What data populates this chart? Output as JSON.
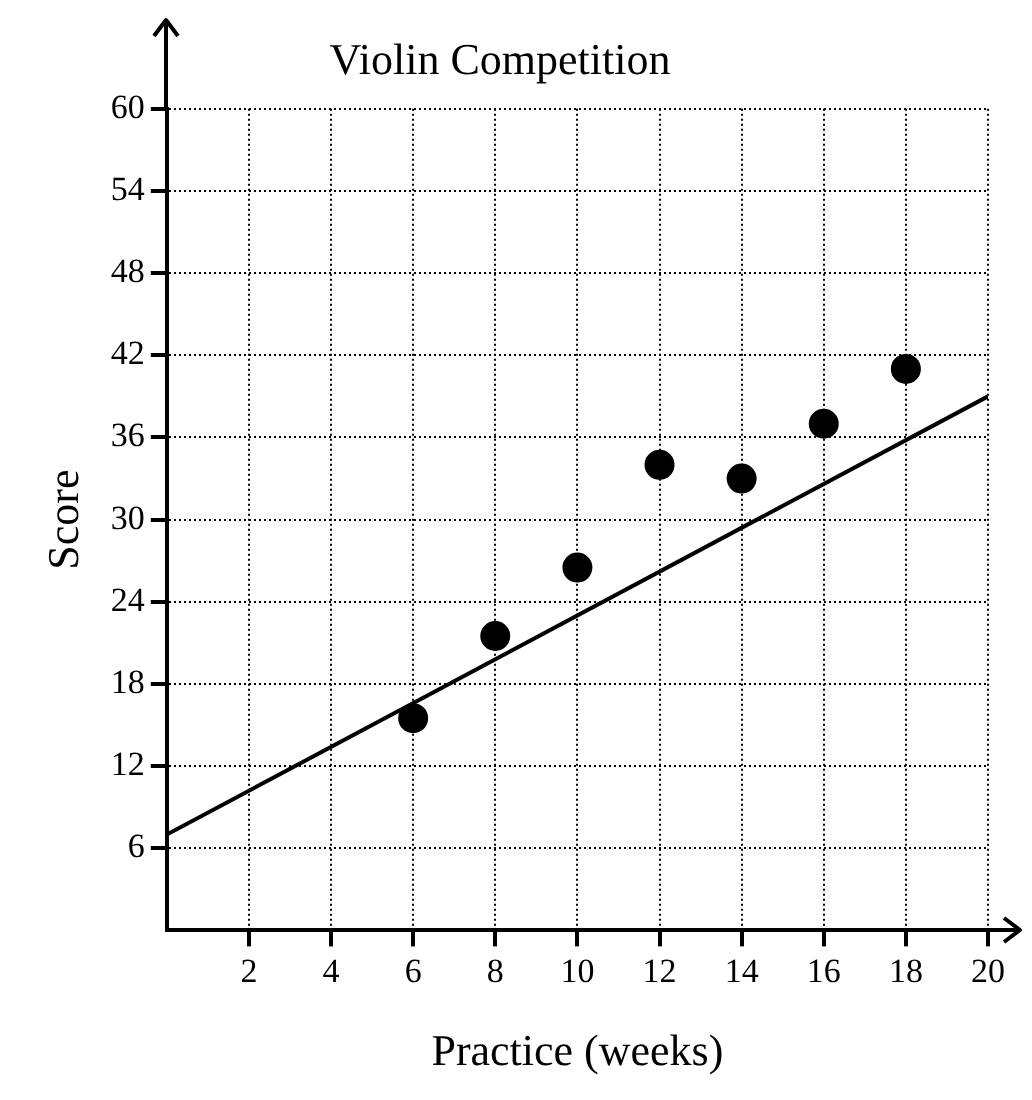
{
  "chart_data": {
    "type": "scatter",
    "title": "Violin Competition",
    "xlabel": "Practice (weeks)",
    "ylabel": "Score",
    "xlim": [
      0,
      20
    ],
    "xticks": [
      2,
      4,
      6,
      8,
      10,
      12,
      14,
      16,
      18,
      20
    ],
    "ylim": [
      0,
      60
    ],
    "yticks": [
      6,
      12,
      18,
      24,
      30,
      36,
      42,
      48,
      54,
      60
    ],
    "grid": true,
    "legend": false,
    "marker": "circle",
    "series": [
      {
        "type": "scatter",
        "color": "#000000",
        "x": [
          6,
          8,
          10,
          12,
          14,
          16,
          18
        ],
        "values": [
          15.5,
          21.5,
          26.5,
          34,
          33,
          37,
          41
        ]
      },
      {
        "type": "line",
        "color": "#000000",
        "x": [
          0,
          20
        ],
        "values": [
          7,
          39
        ],
        "marker": "none",
        "line_style": "solid"
      }
    ]
  }
}
